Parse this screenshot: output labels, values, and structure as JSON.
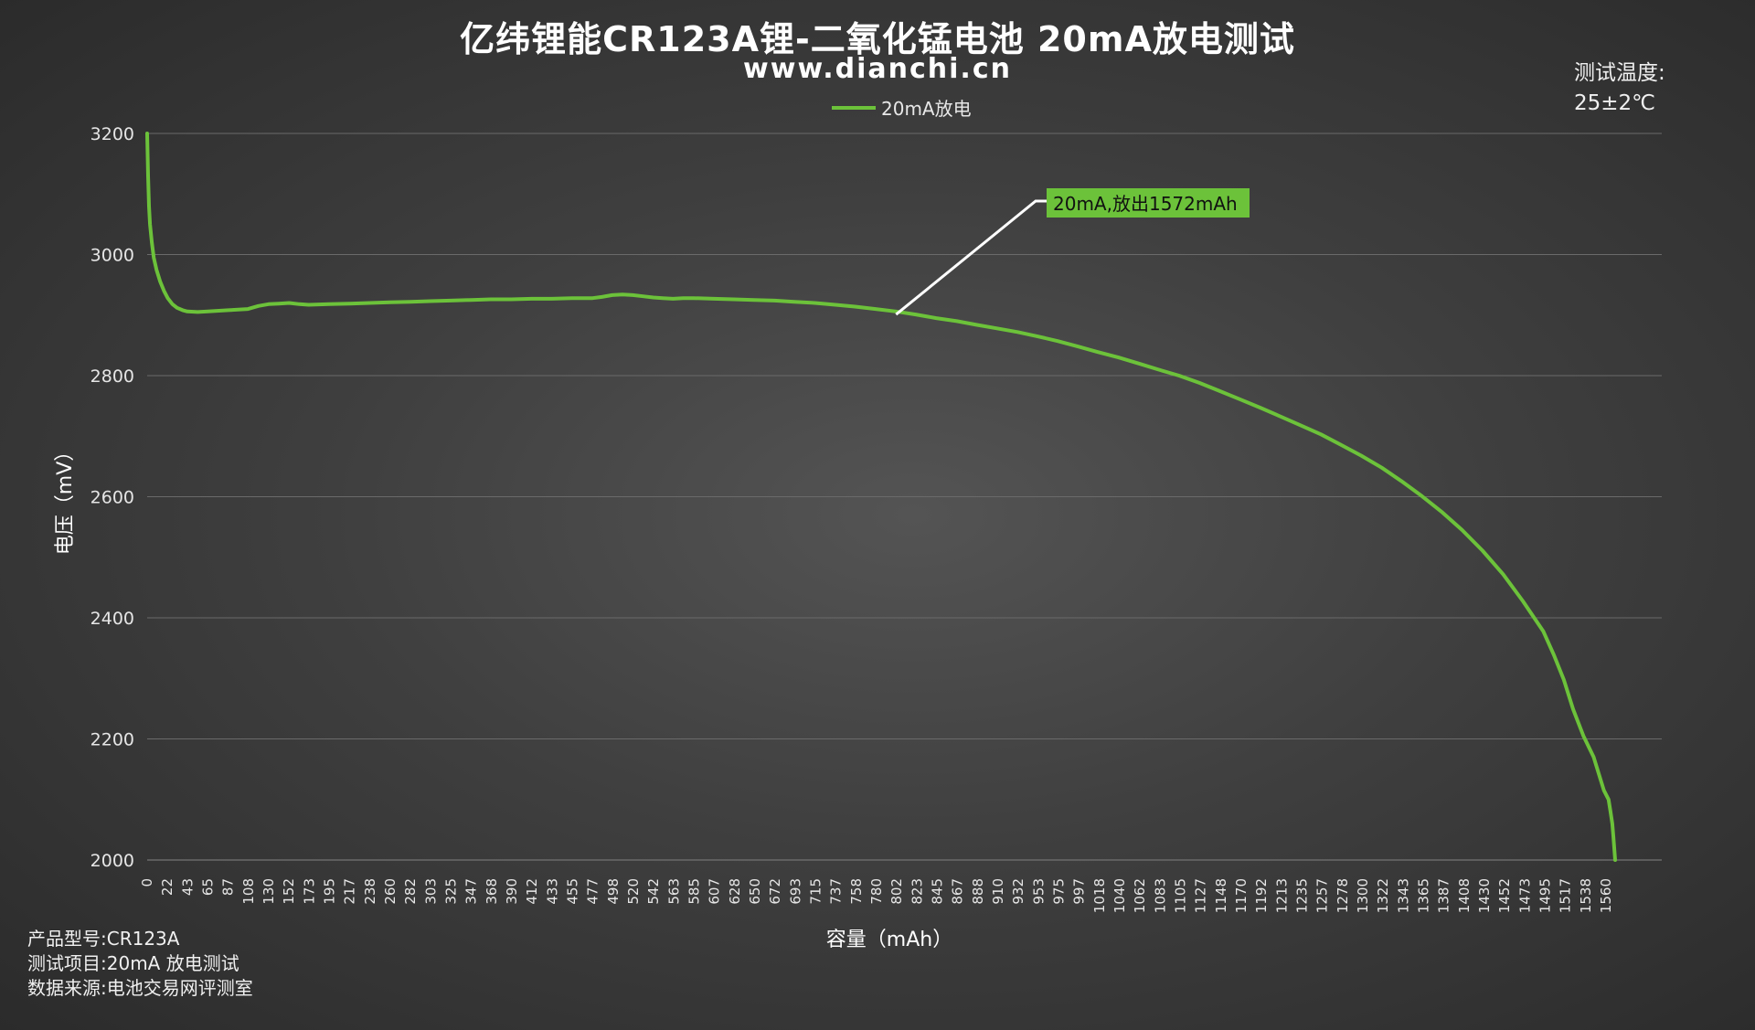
{
  "header": {
    "title": "亿纬锂能CR123A锂-二氧化锰电池 20mA放电测试",
    "website": "www.dianchi.cn",
    "temperature_label": "测试温度:",
    "temperature_value": "25±2℃"
  },
  "info": {
    "model_label": "产品型号:",
    "model_value": "CR123A",
    "test_label": "测试项目:",
    "test_value": "20mA 放电测试",
    "source_label": "数据来源:",
    "source_value": "电池交易网评测室"
  },
  "colors": {
    "series": "#6cc23a",
    "annotation_bg": "#6cc23a",
    "annotation_text": "#111111",
    "leader_line": "#ffffff",
    "grid": "#6a6a6a"
  },
  "chart_data": {
    "type": "line",
    "title": "亿纬锂能CR123A锂-二氧化锰电池 20mA放电测试",
    "subtitle": "www.dianchi.cn",
    "xlabel": "容量（mAh）",
    "ylabel": "电压（mV）",
    "xlim": [
      0,
      1572
    ],
    "ylim": [
      2000,
      3200
    ],
    "yticks": [
      2000,
      2200,
      2400,
      2600,
      2800,
      3000,
      3200
    ],
    "xtick_labels": [
      "0",
      "22",
      "43",
      "65",
      "87",
      "108",
      "130",
      "152",
      "173",
      "195",
      "217",
      "238",
      "260",
      "282",
      "303",
      "325",
      "347",
      "368",
      "390",
      "412",
      "433",
      "455",
      "477",
      "498",
      "520",
      "542",
      "563",
      "585",
      "607",
      "628",
      "650",
      "672",
      "693",
      "715",
      "737",
      "758",
      "780",
      "802",
      "823",
      "845",
      "867",
      "888",
      "910",
      "932",
      "953",
      "975",
      "997",
      "1018",
      "1040",
      "1062",
      "1083",
      "1105",
      "1127",
      "1148",
      "1170",
      "1192",
      "1213",
      "1235",
      "1257",
      "1278",
      "1300",
      "1322",
      "1343",
      "1365",
      "1387",
      "1408",
      "1430",
      "1452",
      "1473",
      "1495",
      "1517",
      "1538",
      "1560"
    ],
    "grid": "horizontal",
    "legend_position": "top-center",
    "annotation": {
      "text": "20mA,放出1572mAh",
      "x": 802,
      "y": 2901
    },
    "series": [
      {
        "name": "20mA放电",
        "x": [
          0,
          1,
          2,
          3,
          5,
          7,
          10,
          14,
          18,
          22,
          27,
          32,
          38,
          43,
          54,
          65,
          87,
          108,
          119,
          130,
          141,
          152,
          163,
          173,
          195,
          217,
          238,
          260,
          282,
          303,
          325,
          347,
          368,
          390,
          412,
          433,
          455,
          477,
          487,
          498,
          509,
          520,
          531,
          542,
          552,
          563,
          574,
          585,
          607,
          628,
          650,
          672,
          693,
          715,
          737,
          758,
          780,
          802,
          823,
          845,
          867,
          888,
          910,
          932,
          953,
          975,
          997,
          1018,
          1040,
          1062,
          1083,
          1105,
          1127,
          1148,
          1170,
          1192,
          1213,
          1235,
          1257,
          1278,
          1300,
          1322,
          1343,
          1365,
          1387,
          1408,
          1430,
          1452,
          1473,
          1495,
          1506,
          1517,
          1527,
          1538,
          1549,
          1555,
          1560,
          1565,
          1567,
          1569,
          1570,
          1571,
          1572
        ],
        "y": [
          3200,
          3130,
          3080,
          3050,
          3020,
          2995,
          2975,
          2955,
          2940,
          2928,
          2918,
          2912,
          2908,
          2906,
          2905,
          2906,
          2908,
          2910,
          2915,
          2918,
          2919,
          2920,
          2918,
          2917,
          2918,
          2919,
          2920,
          2921,
          2922,
          2923,
          2924,
          2925,
          2926,
          2926,
          2927,
          2927,
          2928,
          2928,
          2930,
          2933,
          2934,
          2933,
          2931,
          2929,
          2928,
          2927,
          2928,
          2928,
          2927,
          2926,
          2925,
          2924,
          2922,
          2920,
          2917,
          2914,
          2910,
          2906,
          2901,
          2895,
          2890,
          2884,
          2878,
          2872,
          2865,
          2857,
          2848,
          2839,
          2830,
          2820,
          2810,
          2800,
          2788,
          2775,
          2761,
          2747,
          2733,
          2718,
          2703,
          2686,
          2668,
          2648,
          2626,
          2601,
          2574,
          2545,
          2511,
          2472,
          2428,
          2378,
          2340,
          2298,
          2249,
          2205,
          2170,
          2140,
          2115,
          2100,
          2080,
          2060,
          2040,
          2020,
          2000
        ]
      }
    ]
  }
}
